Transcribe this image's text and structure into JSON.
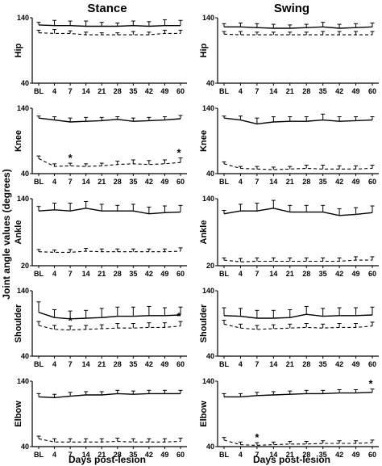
{
  "figure": {
    "col_titles": [
      "Stance",
      "Swing"
    ],
    "y_axis_label": "Joint angle values (degrees)",
    "x_axis_label": "Days post-lesion",
    "x_tick_labels": [
      "BL",
      "4",
      "7",
      "14",
      "21",
      "28",
      "35",
      "42",
      "49",
      "60"
    ]
  },
  "chart_data": [
    {
      "type": "line",
      "panel": "Hip - Stance",
      "row_label": "Hip",
      "ylim": [
        40,
        140
      ],
      "yticks": [
        40,
        140
      ],
      "categories": [
        "BL",
        "4",
        "7",
        "14",
        "21",
        "28",
        "35",
        "42",
        "49",
        "60"
      ],
      "series": [
        {
          "style": "solid",
          "values": [
            129,
            128,
            128,
            127,
            127,
            127,
            128,
            127,
            128,
            128
          ],
          "errors": [
            4,
            8,
            7,
            8,
            6,
            5,
            7,
            7,
            9,
            8
          ]
        },
        {
          "style": "dashed",
          "values": [
            117,
            116,
            116,
            114,
            114,
            114,
            114,
            114,
            116,
            116
          ],
          "errors": [
            4,
            6,
            4,
            4,
            3,
            3,
            5,
            4,
            5,
            5
          ]
        }
      ],
      "annotations": []
    },
    {
      "type": "line",
      "panel": "Hip - Swing",
      "row_label": "Hip",
      "ylim": [
        40,
        140
      ],
      "yticks": [
        40,
        140
      ],
      "categories": [
        "BL",
        "4",
        "7",
        "14",
        "21",
        "28",
        "35",
        "42",
        "49",
        "60"
      ],
      "series": [
        {
          "style": "solid",
          "values": [
            126,
            126,
            125,
            124,
            124,
            125,
            126,
            124,
            125,
            126
          ],
          "errors": [
            5,
            6,
            6,
            6,
            5,
            5,
            7,
            6,
            6,
            6
          ]
        },
        {
          "style": "dashed",
          "values": [
            115,
            114,
            114,
            114,
            114,
            114,
            114,
            114,
            114,
            114
          ],
          "errors": [
            4,
            5,
            4,
            4,
            4,
            4,
            5,
            5,
            5,
            5
          ]
        }
      ],
      "annotations": []
    },
    {
      "type": "line",
      "panel": "Knee - Stance",
      "row_label": "Knee",
      "ylim": [
        40,
        140
      ],
      "yticks": [
        40,
        140
      ],
      "categories": [
        "BL",
        "4",
        "7",
        "14",
        "21",
        "28",
        "35",
        "42",
        "49",
        "60"
      ],
      "series": [
        {
          "style": "solid",
          "values": [
            125,
            122,
            119,
            120,
            121,
            123,
            120,
            121,
            122,
            124
          ],
          "errors": [
            3,
            5,
            6,
            6,
            5,
            4,
            5,
            5,
            5,
            5
          ]
        },
        {
          "style": "dashed",
          "values": [
            63,
            51,
            52,
            51,
            52,
            54,
            55,
            54,
            55,
            57
          ],
          "errors": [
            4,
            4,
            4,
            4,
            4,
            5,
            6,
            6,
            6,
            7
          ]
        }
      ],
      "annotations": [
        {
          "text": "*",
          "series": 1,
          "x": "7"
        },
        {
          "text": "*",
          "series": 1,
          "x": "60"
        }
      ]
    },
    {
      "type": "line",
      "panel": "Knee - Swing",
      "row_label": "Knee",
      "ylim": [
        40,
        140
      ],
      "yticks": [
        40,
        140
      ],
      "categories": [
        "BL",
        "4",
        "7",
        "14",
        "21",
        "28",
        "35",
        "42",
        "49",
        "60"
      ],
      "series": [
        {
          "style": "solid",
          "values": [
            125,
            122,
            116,
            119,
            120,
            120,
            122,
            120,
            121,
            122
          ],
          "errors": [
            3,
            6,
            9,
            8,
            7,
            7,
            9,
            7,
            6,
            5
          ]
        },
        {
          "style": "dashed",
          "values": [
            55,
            48,
            47,
            46,
            47,
            48,
            47,
            47,
            47,
            48
          ],
          "errors": [
            3,
            3,
            4,
            4,
            4,
            5,
            6,
            5,
            5,
            5
          ]
        }
      ],
      "annotations": []
    },
    {
      "type": "line",
      "panel": "Ankle - Stance",
      "row_label": "Ankle",
      "ylim": [
        20,
        140
      ],
      "yticks": [
        20,
        140
      ],
      "categories": [
        "BL",
        "4",
        "7",
        "14",
        "21",
        "28",
        "35",
        "42",
        "49",
        "60"
      ],
      "series": [
        {
          "style": "solid",
          "values": [
            118,
            120,
            118,
            123,
            118,
            118,
            118,
            113,
            115,
            116
          ],
          "errors": [
            8,
            12,
            14,
            12,
            12,
            10,
            12,
            12,
            12,
            12
          ]
        },
        {
          "style": "dashed",
          "values": [
            45,
            44,
            44,
            46,
            45,
            45,
            45,
            45,
            45,
            46
          ],
          "errors": [
            4,
            4,
            5,
            5,
            5,
            5,
            5,
            5,
            5,
            6
          ]
        }
      ],
      "annotations": []
    },
    {
      "type": "line",
      "panel": "Ankle - Swing",
      "row_label": "Ankle",
      "ylim": [
        20,
        140
      ],
      "yticks": [
        20,
        140
      ],
      "categories": [
        "BL",
        "4",
        "7",
        "14",
        "21",
        "28",
        "35",
        "42",
        "49",
        "60"
      ],
      "series": [
        {
          "style": "solid",
          "values": [
            113,
            118,
            118,
            123,
            116,
            116,
            116,
            110,
            112,
            115
          ],
          "errors": [
            6,
            12,
            14,
            14,
            12,
            12,
            12,
            12,
            12,
            12
          ]
        },
        {
          "style": "dashed",
          "values": [
            30,
            27,
            28,
            28,
            28,
            28,
            28,
            28,
            30,
            30
          ],
          "errors": [
            4,
            6,
            6,
            6,
            6,
            6,
            6,
            6,
            6,
            6
          ]
        }
      ],
      "annotations": []
    },
    {
      "type": "line",
      "panel": "Shoulder - Stance",
      "row_label": "Shoulder",
      "ylim": [
        40,
        140
      ],
      "yticks": [
        40,
        140
      ],
      "categories": [
        "BL",
        "4",
        "7",
        "14",
        "21",
        "28",
        "35",
        "42",
        "49",
        "60"
      ],
      "series": [
        {
          "style": "solid",
          "values": [
            107,
            99,
            97,
            98,
            99,
            101,
            101,
            102,
            102,
            103
          ],
          "errors": [
            16,
            12,
            12,
            12,
            14,
            14,
            14,
            14,
            12,
            12
          ]
        },
        {
          "style": "dashed",
          "values": [
            87,
            81,
            80,
            81,
            82,
            83,
            83,
            84,
            84,
            86
          ],
          "errors": [
            6,
            6,
            6,
            6,
            6,
            7,
            7,
            7,
            7,
            7
          ]
        }
      ],
      "annotations": [
        {
          "text": "*",
          "series": 1,
          "x": "7"
        },
        {
          "text": "*",
          "series": 1,
          "x": "60"
        }
      ]
    },
    {
      "type": "line",
      "panel": "Shoulder - Swing",
      "row_label": "Shoulder",
      "ylim": [
        40,
        140
      ],
      "yticks": [
        40,
        140
      ],
      "categories": [
        "BL",
        "4",
        "7",
        "14",
        "21",
        "28",
        "35",
        "42",
        "49",
        "60"
      ],
      "series": [
        {
          "style": "solid",
          "values": [
            102,
            101,
            98,
            98,
            99,
            104,
            101,
            102,
            102,
            103
          ],
          "errors": [
            12,
            12,
            12,
            12,
            12,
            12,
            12,
            12,
            12,
            12
          ]
        },
        {
          "style": "dashed",
          "values": [
            89,
            83,
            81,
            82,
            83,
            84,
            83,
            84,
            84,
            86
          ],
          "errors": [
            6,
            6,
            6,
            6,
            6,
            6,
            6,
            6,
            6,
            6
          ]
        }
      ],
      "annotations": []
    },
    {
      "type": "line",
      "panel": "Elbow - Stance",
      "row_label": "Elbow",
      "ylim": [
        40,
        140
      ],
      "yticks": [
        40,
        140
      ],
      "categories": [
        "BL",
        "4",
        "7",
        "14",
        "21",
        "28",
        "35",
        "42",
        "49",
        "60"
      ],
      "series": [
        {
          "style": "solid",
          "values": [
            116,
            115,
            117,
            119,
            119,
            121,
            120,
            121,
            121,
            121
          ],
          "errors": [
            5,
            5,
            6,
            5,
            5,
            5,
            5,
            5,
            5,
            5
          ]
        },
        {
          "style": "dashed",
          "values": [
            52,
            47,
            47,
            47,
            47,
            48,
            47,
            47,
            47,
            48
          ],
          "errors": [
            4,
            5,
            5,
            5,
            5,
            5,
            5,
            5,
            5,
            5
          ]
        }
      ],
      "annotations": []
    },
    {
      "type": "line",
      "panel": "Elbow - Swing",
      "row_label": "Elbow",
      "ylim": [
        40,
        140
      ],
      "yticks": [
        40,
        140
      ],
      "categories": [
        "BL",
        "4",
        "7",
        "14",
        "21",
        "28",
        "35",
        "42",
        "49",
        "60"
      ],
      "series": [
        {
          "style": "solid",
          "values": [
            116,
            116,
            118,
            119,
            120,
            121,
            121,
            122,
            122,
            123
          ],
          "errors": [
            5,
            5,
            5,
            5,
            5,
            5,
            5,
            5,
            5,
            5
          ]
        },
        {
          "style": "dashed",
          "values": [
            50,
            43,
            42,
            43,
            44,
            44,
            45,
            45,
            45,
            46
          ],
          "errors": [
            4,
            4,
            4,
            4,
            4,
            4,
            4,
            4,
            4,
            4
          ]
        }
      ],
      "annotations": [
        {
          "text": "*",
          "series": 1,
          "x": "7"
        },
        {
          "text": "*",
          "series": 0,
          "x": "60"
        }
      ]
    }
  ]
}
